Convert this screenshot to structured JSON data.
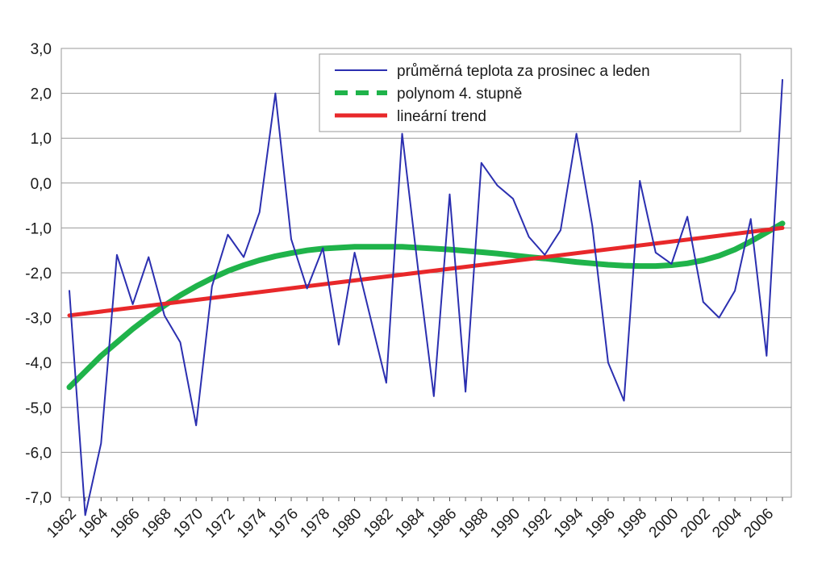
{
  "chart_data": {
    "type": "line",
    "title": "",
    "xlabel": "",
    "ylabel": "",
    "ylim": [
      -7.0,
      3.0
    ],
    "y_ticks": [
      "3,0",
      "2,0",
      "1,0",
      "0,0",
      "-1,0",
      "-2,0",
      "-3,0",
      "-4,0",
      "-5,0",
      "-6,0",
      "-7,0"
    ],
    "x_tick_labels": [
      "1962",
      "1964",
      "1966",
      "1968",
      "1970",
      "1972",
      "1974",
      "1976",
      "1978",
      "1980",
      "1982",
      "1984",
      "1986",
      "1988",
      "1990",
      "1992",
      "1994",
      "1996",
      "1998",
      "2000",
      "2002",
      "2004",
      "2006"
    ],
    "x": [
      1962,
      1963,
      1964,
      1965,
      1966,
      1967,
      1968,
      1969,
      1970,
      1971,
      1972,
      1973,
      1974,
      1975,
      1976,
      1977,
      1978,
      1979,
      1980,
      1981,
      1982,
      1983,
      1984,
      1985,
      1986,
      1987,
      1988,
      1989,
      1990,
      1991,
      1992,
      1993,
      1994,
      1995,
      1996,
      1997,
      1998,
      1999,
      2000,
      2001,
      2002,
      2003,
      2004,
      2005,
      2006,
      2007
    ],
    "grid": "horizontal",
    "legend_position": "top-right",
    "series": [
      {
        "name": "průměrná teplota za prosinec a leden",
        "color": "#2b2fb0",
        "style": "thin-line",
        "values": [
          -2.4,
          -7.4,
          -5.8,
          -1.6,
          -2.7,
          -1.65,
          -2.95,
          -3.55,
          -5.4,
          -2.3,
          -1.15,
          -1.65,
          -0.65,
          2.0,
          -1.25,
          -2.35,
          -1.45,
          -3.6,
          -1.55,
          -3.0,
          -4.45,
          1.1,
          -1.9,
          -4.75,
          -0.25,
          -4.65,
          0.45,
          -0.05,
          -0.35,
          -1.2,
          -1.6,
          -1.05,
          1.1,
          -0.95,
          -4.0,
          -4.85,
          0.05,
          -1.55,
          -1.8,
          -0.75,
          -2.65,
          -3.0,
          -2.4,
          -0.8,
          -3.85,
          2.3
        ]
      },
      {
        "name": "polynom 4. stupně",
        "color": "#1fb34a",
        "style": "thick-dashed-line",
        "values": [
          -4.55,
          -4.2,
          -3.85,
          -3.55,
          -3.25,
          -2.98,
          -2.73,
          -2.5,
          -2.3,
          -2.12,
          -1.96,
          -1.83,
          -1.72,
          -1.63,
          -1.56,
          -1.5,
          -1.46,
          -1.44,
          -1.42,
          -1.42,
          -1.42,
          -1.42,
          -1.44,
          -1.46,
          -1.48,
          -1.51,
          -1.54,
          -1.57,
          -1.61,
          -1.65,
          -1.68,
          -1.72,
          -1.76,
          -1.79,
          -1.82,
          -1.84,
          -1.85,
          -1.85,
          -1.83,
          -1.79,
          -1.72,
          -1.62,
          -1.48,
          -1.3,
          -1.1,
          -0.9
        ]
      },
      {
        "name": "lineární trend",
        "color": "#e8282a",
        "style": "thick-line",
        "values": [
          -2.95,
          -1.0
        ],
        "x": [
          1962,
          2007
        ]
      }
    ]
  }
}
